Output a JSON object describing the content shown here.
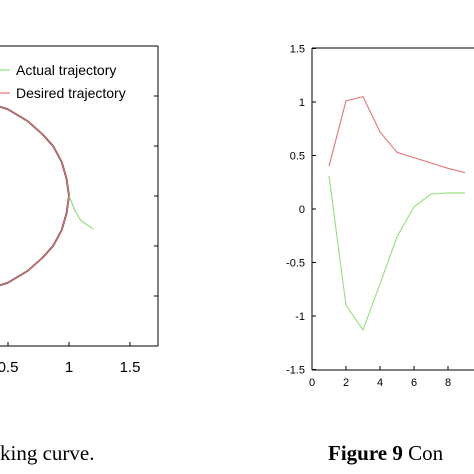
{
  "chart_data": [
    {
      "type": "line",
      "title": "",
      "xlabel": "",
      "ylabel": "",
      "x_ticks_visible": [
        "0.5",
        "1",
        "1.5"
      ],
      "xlim": [
        0.5,
        1.5
      ],
      "ylim": [
        -1.5,
        1.5
      ],
      "grid": false,
      "legend": {
        "placement": "top-right"
      },
      "series": [
        {
          "name": "Actual trajectory",
          "color": "#90e27a",
          "points": [
            [
              1.0,
              0.0
            ],
            [
              1.05,
              -0.15
            ],
            [
              1.1,
              -0.25
            ],
            [
              1.2,
              -0.33
            ]
          ]
        },
        {
          "name": "Desired trajectory",
          "color": "#e37373",
          "points": [
            [
              0.3,
              0.95
            ],
            [
              0.5,
              0.866
            ],
            [
              0.66,
              0.75
            ],
            [
              0.78,
              0.62
            ],
            [
              0.87,
              0.5
            ],
            [
              0.94,
              0.34
            ],
            [
              0.98,
              0.17
            ],
            [
              1.0,
              0.0
            ],
            [
              0.98,
              -0.17
            ],
            [
              0.94,
              -0.34
            ],
            [
              0.87,
              -0.5
            ],
            [
              0.78,
              -0.62
            ],
            [
              0.66,
              -0.75
            ],
            [
              0.5,
              -0.866
            ],
            [
              0.3,
              -0.95
            ]
          ]
        },
        {
          "name": "",
          "color": "#222222",
          "points": [
            [
              0.3,
              0.95
            ],
            [
              0.5,
              0.866
            ],
            [
              0.66,
              0.75
            ],
            [
              0.78,
              0.62
            ],
            [
              0.87,
              0.5
            ],
            [
              0.94,
              0.34
            ],
            [
              0.98,
              0.17
            ],
            [
              1.0,
              0.0
            ],
            [
              0.98,
              -0.17
            ],
            [
              0.94,
              -0.34
            ],
            [
              0.87,
              -0.5
            ],
            [
              0.78,
              -0.62
            ],
            [
              0.66,
              -0.75
            ],
            [
              0.5,
              -0.866
            ],
            [
              0.3,
              -0.95
            ]
          ]
        }
      ],
      "caption_fragment": "king curve."
    },
    {
      "type": "line",
      "title": "",
      "xlabel": "",
      "ylabel": "",
      "x_ticks": [
        "0",
        "2",
        "4",
        "6",
        "8"
      ],
      "y_ticks": [
        "1.5",
        "1",
        "0.5",
        "0",
        "-0.5",
        "-1",
        "-1.5"
      ],
      "xlim": [
        0,
        9
      ],
      "ylim": [
        -1.5,
        1.5
      ],
      "grid": false,
      "series": [
        {
          "name": "",
          "color": "#e37373",
          "x": [
            1,
            2,
            3,
            4,
            5,
            6,
            7,
            8,
            9
          ],
          "values": [
            0.4,
            1.01,
            1.05,
            0.72,
            0.53,
            0.48,
            0.43,
            0.38,
            0.34
          ]
        },
        {
          "name": "",
          "color": "#90e27a",
          "x": [
            1,
            2,
            3,
            4,
            5,
            6,
            7,
            8,
            9
          ],
          "values": [
            0.31,
            -0.9,
            -1.13,
            -0.7,
            -0.26,
            0.02,
            0.14,
            0.15,
            0.15
          ]
        }
      ],
      "caption_bold": "Figure 9",
      "caption_rest": " Con"
    }
  ]
}
